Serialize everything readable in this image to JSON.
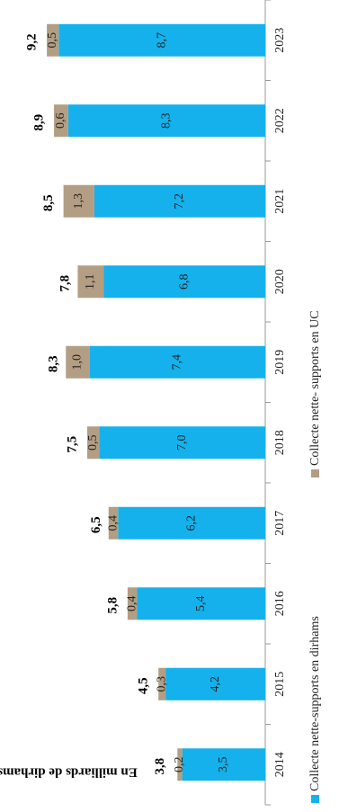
{
  "chart_data": {
    "type": "stacked_bar",
    "orientation": "rotated",
    "y_label": "En milliards de dirhams",
    "categories": [
      "2014",
      "2015",
      "2016",
      "2017",
      "2018",
      "2019",
      "2020",
      "2021",
      "2022",
      "2023"
    ],
    "series": [
      {
        "name": "Collecte nette-supports en dirhams",
        "color": "#14b1ec",
        "values": [
          3.5,
          4.2,
          5.4,
          6.2,
          7.0,
          7.4,
          6.8,
          7.2,
          8.3,
          8.7
        ],
        "value_labels": [
          "3,5",
          "4,2",
          "5,4",
          "6,2",
          "7,0",
          "7,4",
          "6,8",
          "7,2",
          "8,3",
          "8,7"
        ]
      },
      {
        "name": "Collecte nette- supports en UC",
        "color": "#b39e83",
        "values": [
          0.2,
          0.3,
          0.4,
          0.4,
          0.5,
          1.0,
          1.1,
          1.3,
          0.6,
          0.5
        ],
        "value_labels": [
          "0,2",
          "0,3",
          "0,4",
          "0,4",
          "0,5",
          "1,0",
          "1,1",
          "1,3",
          "0,6",
          "0,5"
        ]
      }
    ],
    "totals": [
      3.8,
      4.5,
      5.8,
      6.5,
      7.5,
      8.3,
      7.8,
      8.5,
      8.9,
      9.2
    ],
    "total_labels": [
      "3,8",
      "4,5",
      "5,8",
      "6,5",
      "7,5",
      "8,3",
      "7,8",
      "8,5",
      "8,9",
      "9,2"
    ],
    "ylim": [
      0,
      10
    ],
    "legend": "bottom"
  }
}
